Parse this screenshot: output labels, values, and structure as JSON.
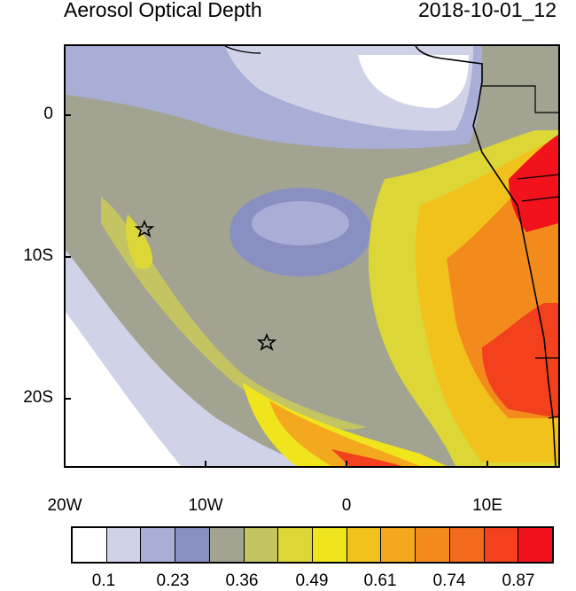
{
  "header": {
    "title": "Aerosol Optical Depth",
    "timestamp": "2018-10-01_12"
  },
  "axes": {
    "lat_labels": [
      "0",
      "10S",
      "20S"
    ],
    "lon_labels": [
      "20W",
      "10W",
      "0",
      "10E"
    ]
  },
  "colorbar": {
    "labels": [
      "0.1",
      "0.23",
      "0.36",
      "0.49",
      "0.61",
      "0.74",
      "0.87"
    ],
    "colors": [
      "#ffffff",
      "#d0d3e8",
      "#a8aed6",
      "#8890c2",
      "#a2a391",
      "#c4c463",
      "#dcd637",
      "#f0e41c",
      "#f2c21c",
      "#f3a81e",
      "#f38b1c",
      "#f26a1c",
      "#f2411c",
      "#f2121c"
    ]
  },
  "markers": [
    {
      "name": "star-marker-west",
      "lon": -14.3,
      "lat": -8.0
    },
    {
      "name": "star-marker-south",
      "lon": -5.8,
      "lat": -16.0
    }
  ]
}
